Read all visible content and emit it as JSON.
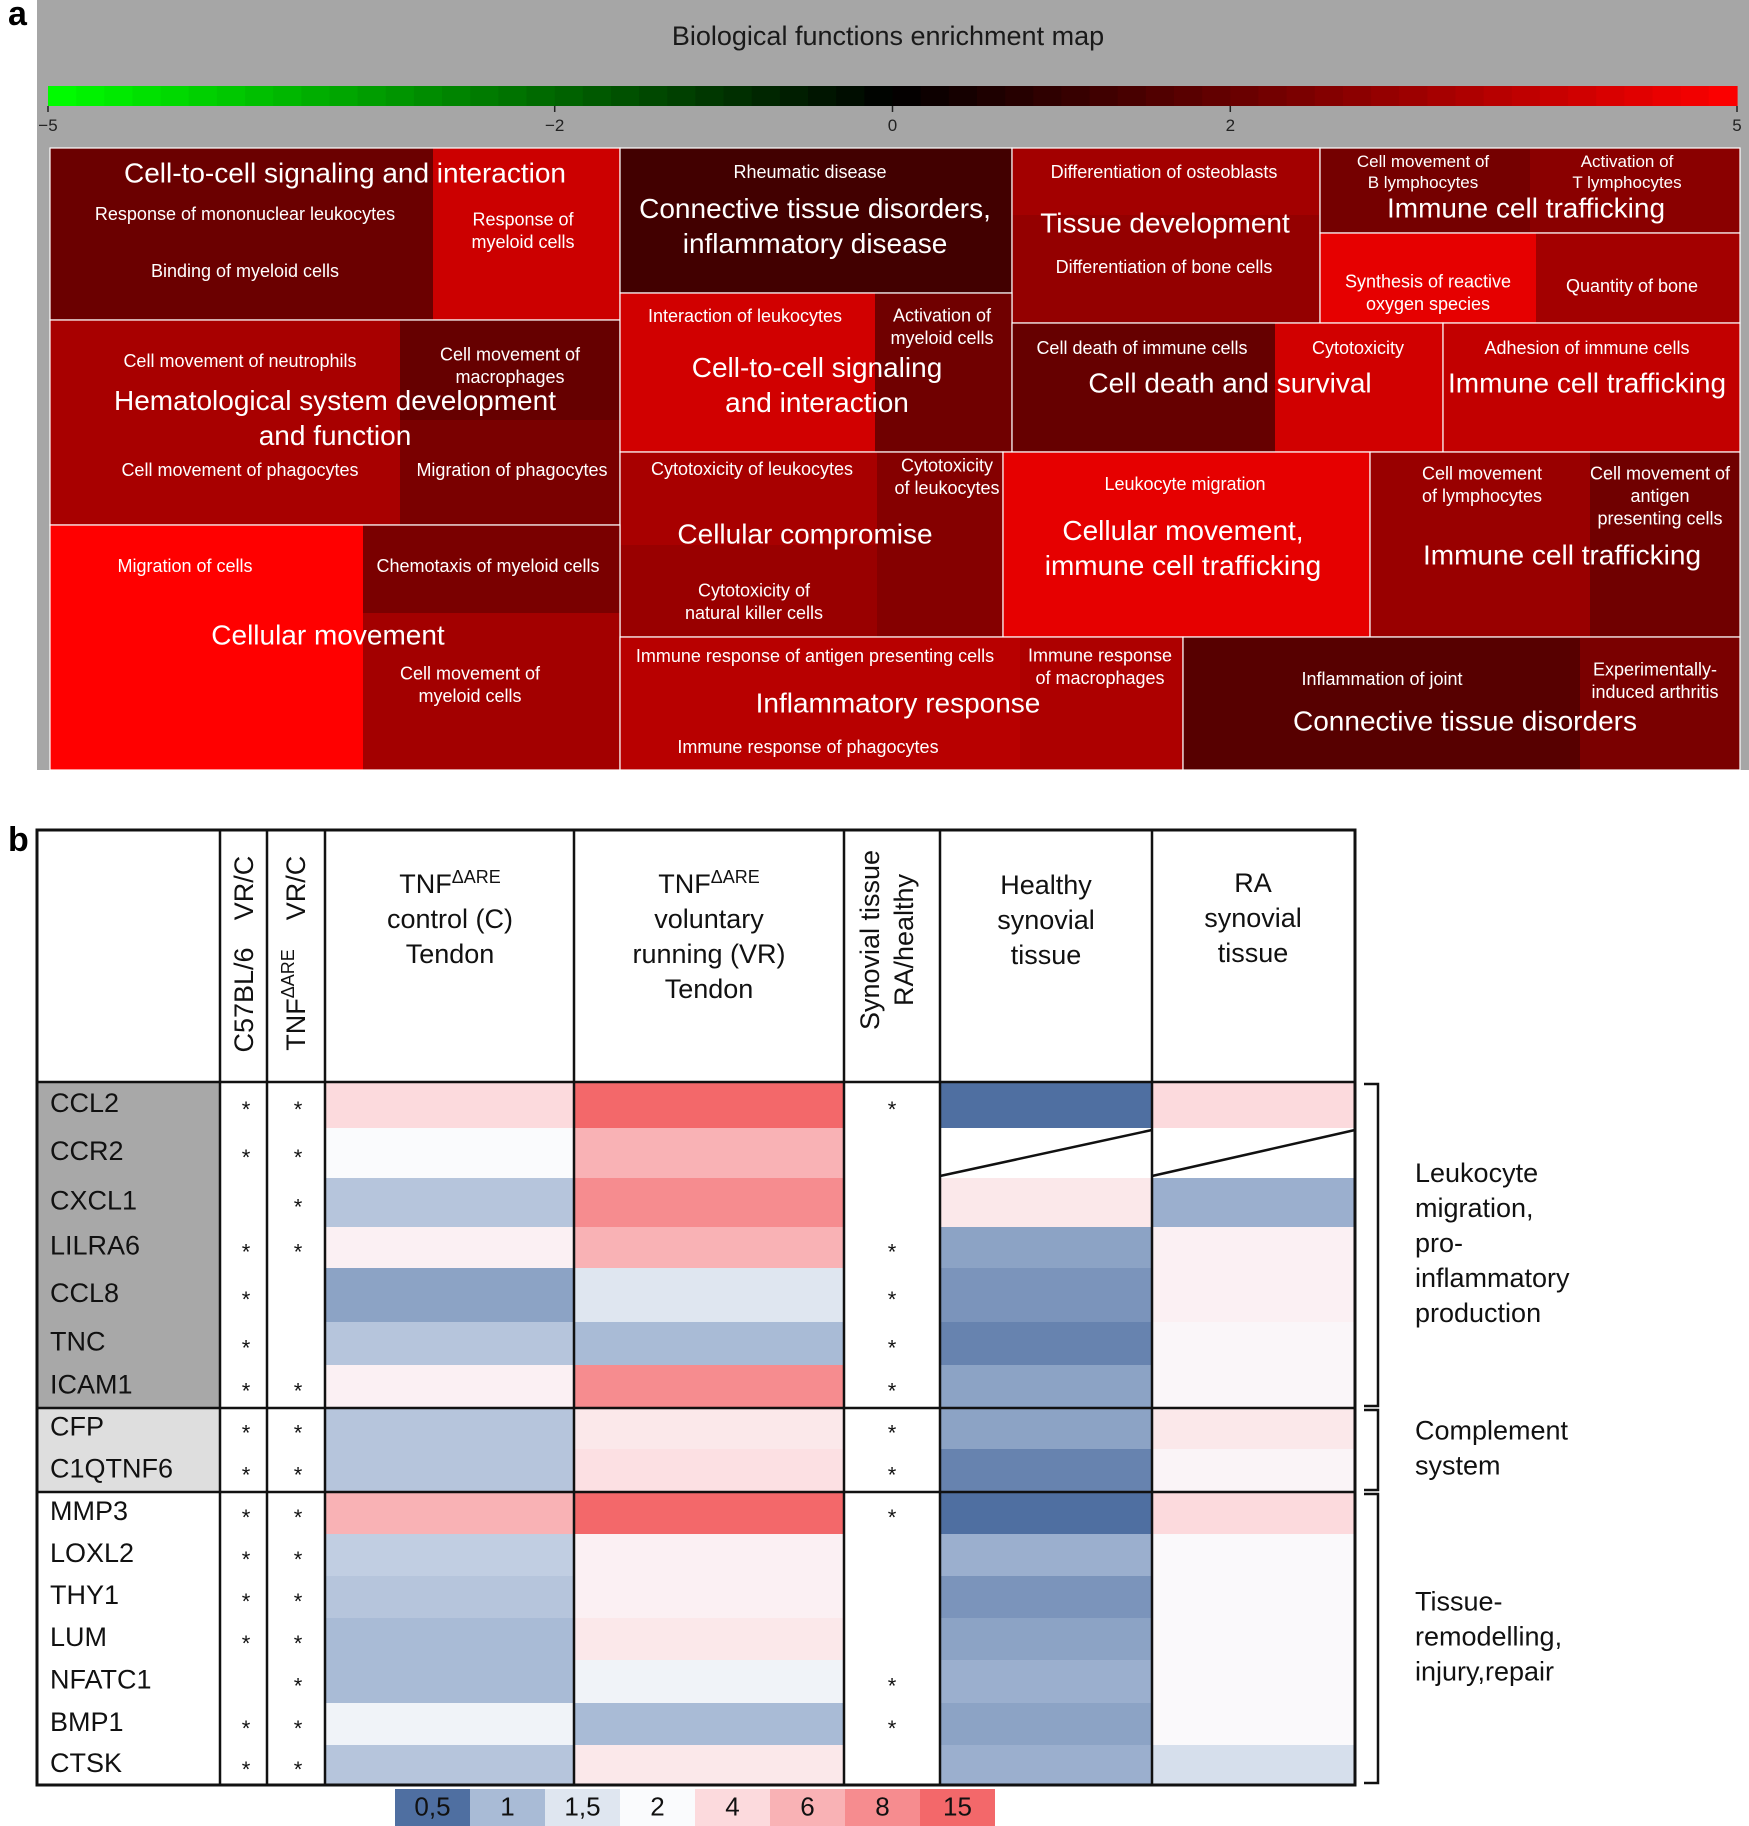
{
  "panel_a": {
    "label": "a",
    "title": "Biological functions enrichment map",
    "colorbar": {
      "min": -5,
      "max": 5,
      "ticks": [
        "-5",
        "-2",
        "0",
        "2",
        "5"
      ],
      "low_color": "#00ff00",
      "mid_color": "#000000",
      "high_color": "#ff0000"
    },
    "groups": [
      {
        "title": [
          "Cell-to-cell signaling and interaction"
        ],
        "z": 2.6,
        "items": [
          {
            "label": [
              "Response of mononuclear leukocytes"
            ],
            "z": 2.1
          },
          {
            "label": [
              "Binding of myeloid cells"
            ],
            "z": 2.1
          },
          {
            "label": [
              "Response of",
              "myeloid cells"
            ],
            "z": 4.0
          }
        ]
      },
      {
        "title": [
          "Connective tissue disorders,",
          "inflammatory disease"
        ],
        "z": 1.3,
        "items": [
          {
            "label": [
              "Rheumatic disease"
            ],
            "z": 1.3
          }
        ]
      },
      {
        "title": [
          "Tissue development"
        ],
        "z": 3.0,
        "items": [
          {
            "label": [
              "Differentiation of osteoblasts"
            ],
            "z": 3.2
          },
          {
            "label": [
              "Differentiation of bone cells"
            ],
            "z": 2.9
          }
        ]
      },
      {
        "title": [
          "Immune cell trafficking"
        ],
        "z": 2.8,
        "items": [
          {
            "label": [
              "Cell movement of",
              "B lymphocytes"
            ],
            "z": 2.3
          },
          {
            "label": [
              "Activation of",
              "T lymphocytes"
            ],
            "z": 2.7
          }
        ]
      },
      {
        "title": [],
        "z": 3.5,
        "items": [
          {
            "label": [
              "Synthesis of reactive",
              "oxygen species"
            ],
            "z": 4.5
          },
          {
            "label": [
              "Quantity of bone"
            ],
            "z": 3.2
          }
        ]
      },
      {
        "title": [
          "Hematological system development",
          "and function"
        ],
        "z": 3.0,
        "items": [
          {
            "label": [
              "Cell movement of neutrophils"
            ],
            "z": 3.3
          },
          {
            "label": [
              "Cell movement of",
              "macrophages"
            ],
            "z": 2.0
          },
          {
            "label": [
              "Cell movement of phagocytes"
            ],
            "z": 3.3
          },
          {
            "label": [
              "Migration of phagocytes"
            ],
            "z": 2.4
          }
        ]
      },
      {
        "title": [
          "Cell-to-cell signaling",
          "and interaction"
        ],
        "z": 4.0,
        "items": [
          {
            "label": [
              "Interaction of leukocytes"
            ],
            "z": 4.1
          },
          {
            "label": [
              "Activation of",
              "myeloid cells"
            ],
            "z": 2.2
          }
        ]
      },
      {
        "title": [
          "Cell death and survival"
        ],
        "z": 2.5,
        "items": [
          {
            "label": [
              "Cell death of immune cells"
            ],
            "z": 2.0
          },
          {
            "label": [
              "Cytotoxicity"
            ],
            "z": 4.1
          }
        ]
      },
      {
        "title": [
          "Immune cell trafficking"
        ],
        "z": 3.8,
        "items": [
          {
            "label": [
              "Adhesion of immune cells"
            ],
            "z": 3.8
          }
        ]
      },
      {
        "title": [
          "Cellular compromise"
        ],
        "z": 3.1,
        "items": [
          {
            "label": [
              "Cytotoxicity of leukocytes"
            ],
            "z": 3.3
          },
          {
            "label": [
              "Cytotoxicity",
              "of leukocytes"
            ],
            "z": 2.6
          },
          {
            "label": [
              "Cytotoxicity of",
              "natural killer cells"
            ],
            "z": 3.0
          }
        ]
      },
      {
        "title": [
          "Cellular movement,",
          "immune cell trafficking"
        ],
        "z": 4.5,
        "items": [
          {
            "label": [
              "Leukocyte migration"
            ],
            "z": 4.5
          }
        ]
      },
      {
        "title": [
          "Immune cell trafficking"
        ],
        "z": 3.0,
        "items": [
          {
            "label": [
              "Cell movement",
              "of lymphocytes"
            ],
            "z": 3.0
          },
          {
            "label": [
              "Cell movement of",
              "antigen",
              "presenting cells"
            ],
            "z": 2.2
          }
        ]
      },
      {
        "title": [
          "Cellular movement"
        ],
        "z": 5.0,
        "items": [
          {
            "label": [
              "Migration of cells"
            ],
            "z": 5.0
          },
          {
            "label": [
              "Chemotaxis of myeloid cells"
            ],
            "z": 2.4
          },
          {
            "label": [
              "Cell movement of",
              "myeloid cells"
            ],
            "z": 3.2
          }
        ]
      },
      {
        "title": [
          "Inflammatory response"
        ],
        "z": 3.5,
        "items": [
          {
            "label": [
              "Immune response of antigen presenting cells"
            ],
            "z": 3.6
          },
          {
            "label": [
              "Immune response",
              "of macrophages"
            ],
            "z": 3.4
          },
          {
            "label": [
              "Immune response of phagocytes"
            ],
            "z": 3.6
          }
        ]
      },
      {
        "title": [
          "Connective tissue disorders"
        ],
        "z": 1.9,
        "items": [
          {
            "label": [
              "Inflammation of joint"
            ],
            "z": 1.7
          },
          {
            "label": [
              "Experimentally-",
              "induced arthritis"
            ],
            "z": 2.4
          }
        ]
      }
    ]
  },
  "panel_b": {
    "label": "b",
    "headers": {
      "col_c57": [
        "C57BL/6",
        "VR/C"
      ],
      "col_tnfare": [
        "TNF",
        "ΔARE",
        "VR/C"
      ],
      "tendon_c": [
        "TNF",
        "ΔARE",
        "control (C)",
        "Tendon"
      ],
      "tendon_vr": [
        "TNF",
        "ΔARE",
        "voluntary",
        "running (VR)",
        "Tendon"
      ],
      "synovial_ratio": [
        "Synovial tissue",
        "RA/healthy"
      ],
      "healthy": [
        "Healthy",
        "synovial",
        "tissue"
      ],
      "ra": [
        "RA",
        "synovial",
        "tissue"
      ]
    },
    "groups": [
      {
        "name": [
          "Leukocyte",
          "migration,",
          "pro-",
          "inflammatory",
          "production"
        ],
        "shade": "#a8a8a8",
        "genes": [
          {
            "gene": "CCL2",
            "c57": "*",
            "tnf": "*",
            "tendon_c": 4,
            "tendon_vr": 15,
            "syn": "*",
            "healthy": 0.5,
            "ra": 4
          },
          {
            "gene": "CCR2",
            "c57": "*",
            "tnf": "*",
            "tendon_c": 2,
            "tendon_vr": 6,
            "syn": "",
            "healthy": null,
            "ra": null
          },
          {
            "gene": "CXCL1",
            "c57": "",
            "tnf": "*",
            "tendon_c": 1.1,
            "tendon_vr": 8,
            "syn": "",
            "healthy": 3,
            "ra": 0.9
          },
          {
            "gene": "LILRA6",
            "c57": "*",
            "tnf": "*",
            "tendon_c": 2.5,
            "tendon_vr": 6,
            "syn": "*",
            "healthy": 0.8,
            "ra": 2.5
          },
          {
            "gene": "CCL8",
            "c57": "*",
            "tnf": "",
            "tendon_c": 0.8,
            "tendon_vr": 1.5,
            "syn": "*",
            "healthy": 0.7,
            "ra": 2.5
          },
          {
            "gene": "TNC",
            "c57": "*",
            "tnf": "",
            "tendon_c": 1.1,
            "tendon_vr": 1.0,
            "syn": "*",
            "healthy": 0.6,
            "ra": 2.2
          },
          {
            "gene": "ICAM1",
            "c57": "*",
            "tnf": "*",
            "tendon_c": 2.5,
            "tendon_vr": 8,
            "syn": "*",
            "healthy": 0.8,
            "ra": 2.2
          }
        ]
      },
      {
        "name": [
          "Complement",
          "system"
        ],
        "shade": "#dedede",
        "genes": [
          {
            "gene": "CFP",
            "c57": "*",
            "tnf": "*",
            "tendon_c": 1.1,
            "tendon_vr": 3,
            "syn": "*",
            "healthy": 0.8,
            "ra": 3
          },
          {
            "gene": "C1QTNF6",
            "c57": "*",
            "tnf": "*",
            "tendon_c": 1.1,
            "tendon_vr": 3.5,
            "syn": "*",
            "healthy": 0.6,
            "ra": 2.3
          }
        ]
      },
      {
        "name": [
          "Tissue-",
          "remodelling,",
          "injury,repair"
        ],
        "shade": "#ffffff",
        "genes": [
          {
            "gene": "MMP3",
            "c57": "*",
            "tnf": "*",
            "tendon_c": 6,
            "tendon_vr": 15,
            "syn": "*",
            "healthy": 0.5,
            "ra": 4
          },
          {
            "gene": "LOXL2",
            "c57": "*",
            "tnf": "*",
            "tendon_c": 1.2,
            "tendon_vr": 2.5,
            "syn": "",
            "healthy": 0.9,
            "ra": 2.1
          },
          {
            "gene": "THY1",
            "c57": "*",
            "tnf": "*",
            "tendon_c": 1.1,
            "tendon_vr": 2.5,
            "syn": "",
            "healthy": 0.7,
            "ra": 2.1
          },
          {
            "gene": "LUM",
            "c57": "*",
            "tnf": "*",
            "tendon_c": 1.0,
            "tendon_vr": 3,
            "syn": "",
            "healthy": 0.8,
            "ra": 2.1
          },
          {
            "gene": "NFATC1",
            "c57": "",
            "tnf": "*",
            "tendon_c": 1.0,
            "tendon_vr": 1.8,
            "syn": "*",
            "healthy": 0.9,
            "ra": 2.1
          },
          {
            "gene": "BMP1",
            "c57": "*",
            "tnf": "*",
            "tendon_c": 1.8,
            "tendon_vr": 1.0,
            "syn": "*",
            "healthy": 0.8,
            "ra": 2.1
          },
          {
            "gene": "CTSK",
            "c57": "*",
            "tnf": "*",
            "tendon_c": 1.1,
            "tendon_vr": 3,
            "syn": "",
            "healthy": 0.9,
            "ra": 1.4
          }
        ]
      }
    ],
    "legend": {
      "labels": [
        "0,5",
        "1",
        "1,5",
        "2",
        "4",
        "6",
        "8",
        "15"
      ],
      "colors": [
        "#4f6fa1",
        "#a9bbd6",
        "#dfe6f0",
        "#fafbfd",
        "#fcdadd",
        "#f9b2b5",
        "#f68c8f",
        "#f3686a"
      ]
    }
  }
}
